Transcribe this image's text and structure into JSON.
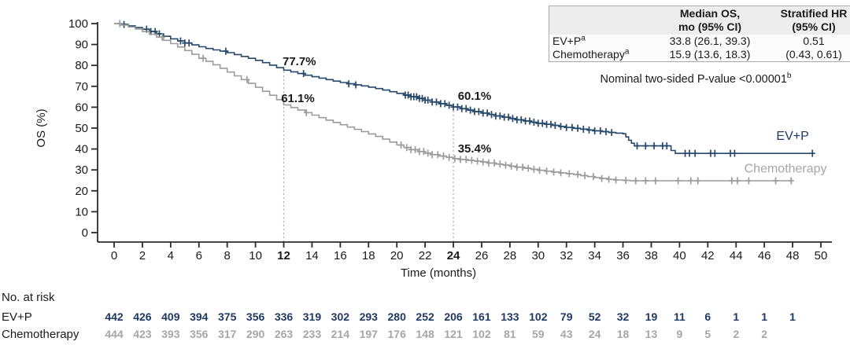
{
  "colors": {
    "evp": "#1F3864",
    "evp_curve": "#26486B",
    "chemo": "#A6A6A6",
    "chemo_curve": "#9C9C9C",
    "axis": "#2b2b2b",
    "refline": "#aaaaaa",
    "table_header_bg": "#ededed",
    "table_border": "#ababab"
  },
  "stats_table": {
    "col_median_line1": "Median OS,",
    "col_median_line2": "mo (95% CI)",
    "col_hr_line1": "Stratified HR",
    "col_hr_line2": "(95% CI)",
    "rows": [
      {
        "label": "EV+P",
        "sup": "a",
        "median": "33.8 (26.1, 39.3)",
        "hr": "0.51"
      },
      {
        "label": "Chemotherapy",
        "sup": "a",
        "median": "15.9 (13.6, 18.3)",
        "hr": "(0.43, 0.61)"
      }
    ]
  },
  "pvalue": {
    "text": "Nominal two-sided P-value <0.00001",
    "sup": "b"
  },
  "chart_data": {
    "type": "line",
    "subtype": "kaplan-meier-step",
    "title": "",
    "xlabel": "Time (months)",
    "ylabel": "OS (%)",
    "xlim": [
      0,
      50
    ],
    "ylim": [
      0,
      100
    ],
    "xtick_step": 2,
    "ytick_step": 10,
    "emphasized_xticks": [
      12,
      24
    ],
    "grid": false,
    "reference_lines": [
      {
        "x": 12,
        "top_pct": 77.7
      },
      {
        "x": 24,
        "top_pct": 60.1
      }
    ],
    "annotations": [
      {
        "text": "77.7%",
        "month": 13.1,
        "pct": 82.0
      },
      {
        "text": "61.1%",
        "month": 13.0,
        "pct": 64.2
      },
      {
        "text": "60.1%",
        "month": 25.5,
        "pct": 65.5
      },
      {
        "text": "35.4%",
        "month": 25.5,
        "pct": 40.2
      }
    ],
    "end_labels": [
      {
        "text": "EV+P",
        "month": 48.0,
        "pct": 46.2,
        "color_key": "evp"
      },
      {
        "text": "Chemotherapy",
        "month": 47.5,
        "pct": 30.6,
        "color_key": "chemo"
      }
    ],
    "series": [
      {
        "name": "EV+P",
        "color_key": "evp_curve",
        "steps": [
          [
            0,
            100
          ],
          [
            0.5,
            99.6
          ],
          [
            1,
            98.9
          ],
          [
            1.5,
            98.1
          ],
          [
            2,
            97.3
          ],
          [
            2.5,
            96.2
          ],
          [
            3,
            95.1
          ],
          [
            3.5,
            93.9
          ],
          [
            4,
            92.7
          ],
          [
            4.5,
            91.7
          ],
          [
            5,
            90.7
          ],
          [
            5.5,
            89.8
          ],
          [
            6,
            88.9
          ],
          [
            6.5,
            88.1
          ],
          [
            7,
            87.4
          ],
          [
            7.5,
            86.8
          ],
          [
            8,
            86.1
          ],
          [
            8.5,
            85.2
          ],
          [
            9,
            84.3
          ],
          [
            9.5,
            83.4
          ],
          [
            10,
            82.4
          ],
          [
            10.5,
            81.3
          ],
          [
            11,
            80.1
          ],
          [
            11.5,
            78.9
          ],
          [
            12,
            77.7
          ],
          [
            12.5,
            76.9
          ],
          [
            13,
            76.1
          ],
          [
            13.5,
            75.3
          ],
          [
            14,
            74.6
          ],
          [
            14.5,
            73.9
          ],
          [
            15,
            73.2
          ],
          [
            15.5,
            72.5
          ],
          [
            16,
            71.8
          ],
          [
            16.5,
            71.2
          ],
          [
            17,
            70.7
          ],
          [
            17.5,
            70.2
          ],
          [
            18,
            69.6
          ],
          [
            18.5,
            68.9
          ],
          [
            19,
            68.2
          ],
          [
            19.5,
            67.4
          ],
          [
            20,
            66.6
          ],
          [
            20.5,
            65.8
          ],
          [
            21,
            65.0
          ],
          [
            21.5,
            64.2
          ],
          [
            22,
            63.4
          ],
          [
            22.5,
            62.5
          ],
          [
            23,
            61.7
          ],
          [
            23.5,
            60.9
          ],
          [
            24,
            60.1
          ],
          [
            24.5,
            59.3
          ],
          [
            25,
            58.6
          ],
          [
            25.5,
            57.9
          ],
          [
            26,
            57.2
          ],
          [
            26.5,
            56.5
          ],
          [
            27,
            55.8
          ],
          [
            27.5,
            55.2
          ],
          [
            28,
            54.6
          ],
          [
            28.5,
            54.0
          ],
          [
            29,
            53.4
          ],
          [
            29.5,
            52.8
          ],
          [
            30,
            52.3
          ],
          [
            30.5,
            51.8
          ],
          [
            31,
            51.3
          ],
          [
            31.5,
            50.8
          ],
          [
            32,
            50.3
          ],
          [
            32.5,
            49.9
          ],
          [
            33,
            49.5
          ],
          [
            33.5,
            49.1
          ],
          [
            34,
            48.7
          ],
          [
            34.5,
            48.3
          ],
          [
            35,
            47.9
          ],
          [
            35.5,
            47.6
          ],
          [
            36,
            47.3
          ],
          [
            36.2,
            45.8
          ],
          [
            36.4,
            44.2
          ],
          [
            36.6,
            42.8
          ],
          [
            36.8,
            41.5
          ],
          [
            39.4,
            39.3
          ],
          [
            39.7,
            37.9
          ],
          [
            49.5,
            37.9
          ]
        ],
        "censor_months": [
          0.7,
          2.3,
          2.6,
          2.9,
          3.2,
          4.7,
          5.0,
          5.3,
          7.9,
          13.4,
          16.6,
          17.1,
          20.6,
          20.8,
          21.0,
          21.2,
          21.4,
          21.6,
          21.8,
          22.0,
          22.2,
          22.5,
          22.8,
          23.1,
          23.4,
          23.7,
          24.0,
          24.3,
          24.6,
          24.9,
          25.2,
          25.5,
          25.8,
          26.1,
          26.4,
          26.7,
          27.0,
          27.3,
          27.6,
          27.9,
          28.2,
          28.5,
          28.8,
          29.1,
          29.4,
          29.7,
          30.0,
          30.3,
          30.6,
          30.9,
          31.2,
          31.6,
          32.0,
          32.4,
          32.8,
          33.2,
          33.6,
          34.0,
          34.4,
          34.8,
          35.2,
          37.0,
          37.6,
          38.2,
          38.8,
          39.1,
          40.4,
          40.7,
          41.1,
          42.2,
          42.5,
          43.6,
          43.9,
          49.4
        ]
      },
      {
        "name": "Chemotherapy",
        "color_key": "chemo_curve",
        "steps": [
          [
            0,
            100
          ],
          [
            0.5,
            99.3
          ],
          [
            1,
            98.4
          ],
          [
            1.5,
            97.4
          ],
          [
            2,
            96.2
          ],
          [
            2.5,
            94.9
          ],
          [
            3,
            93.5
          ],
          [
            3.5,
            92.0
          ],
          [
            4,
            90.4
          ],
          [
            4.5,
            88.8
          ],
          [
            5,
            87.1
          ],
          [
            5.5,
            85.3
          ],
          [
            6,
            83.4
          ],
          [
            6.5,
            81.9
          ],
          [
            7,
            80.3
          ],
          [
            7.5,
            78.6
          ],
          [
            8,
            76.8
          ],
          [
            8.5,
            75.0
          ],
          [
            9,
            73.2
          ],
          [
            9.5,
            71.4
          ],
          [
            10,
            69.5
          ],
          [
            10.5,
            67.6
          ],
          [
            11,
            65.7
          ],
          [
            11.5,
            63.6
          ],
          [
            12,
            61.1
          ],
          [
            12.5,
            59.8
          ],
          [
            13,
            58.6
          ],
          [
            13.5,
            57.4
          ],
          [
            14,
            56.2
          ],
          [
            14.5,
            55.0
          ],
          [
            15,
            53.8
          ],
          [
            15.5,
            52.7
          ],
          [
            16,
            51.6
          ],
          [
            16.5,
            50.5
          ],
          [
            17,
            49.4
          ],
          [
            17.5,
            48.3
          ],
          [
            18,
            47.2
          ],
          [
            18.5,
            46.0
          ],
          [
            19,
            44.7
          ],
          [
            19.5,
            43.3
          ],
          [
            20,
            41.9
          ],
          [
            20.5,
            40.7
          ],
          [
            21,
            39.7
          ],
          [
            21.5,
            38.8
          ],
          [
            22,
            38.0
          ],
          [
            22.5,
            37.3
          ],
          [
            23,
            36.6
          ],
          [
            23.5,
            36.0
          ],
          [
            24,
            35.4
          ],
          [
            24.5,
            35.0
          ],
          [
            25,
            34.6
          ],
          [
            25.5,
            34.2
          ],
          [
            26,
            33.8
          ],
          [
            26.5,
            33.3
          ],
          [
            27,
            32.8
          ],
          [
            27.5,
            32.3
          ],
          [
            28,
            31.8
          ],
          [
            28.5,
            31.3
          ],
          [
            29,
            30.8
          ],
          [
            29.5,
            30.3
          ],
          [
            30,
            29.8
          ],
          [
            30.5,
            29.4
          ],
          [
            31,
            29.0
          ],
          [
            31.5,
            28.6
          ],
          [
            32,
            28.2
          ],
          [
            32.5,
            27.8
          ],
          [
            33,
            27.3
          ],
          [
            33.5,
            26.8
          ],
          [
            34,
            26.3
          ],
          [
            34.5,
            25.9
          ],
          [
            35,
            25.5
          ],
          [
            35.5,
            25.2
          ],
          [
            36,
            25.0
          ],
          [
            36.5,
            24.8
          ],
          [
            48,
            24.8
          ]
        ],
        "censor_months": [
          0.4,
          3.4,
          6.3,
          9.4,
          13.6,
          20.3,
          20.7,
          21.0,
          21.3,
          21.6,
          21.9,
          22.2,
          22.5,
          22.9,
          23.3,
          23.7,
          24.1,
          24.5,
          24.9,
          25.3,
          25.7,
          26.1,
          26.5,
          26.9,
          27.3,
          27.7,
          28.1,
          28.5,
          28.9,
          29.3,
          29.7,
          30.1,
          30.6,
          31.1,
          31.6,
          32.2,
          32.8,
          33.3,
          33.9,
          34.5,
          35.0,
          35.5,
          36.2,
          36.9,
          37.6,
          38.3,
          39.9,
          40.8,
          41.3,
          43.7,
          44.1,
          44.9,
          46.8,
          47.9
        ]
      }
    ]
  },
  "risk_table": {
    "title": "No. at risk",
    "start_month": 0,
    "month_step": 2,
    "rows": [
      {
        "label": "EV+P",
        "color_key": "evp",
        "values": [
          442,
          426,
          409,
          394,
          375,
          356,
          336,
          319,
          302,
          293,
          280,
          252,
          206,
          161,
          133,
          102,
          79,
          52,
          32,
          19,
          11,
          6,
          1,
          1,
          1
        ]
      },
      {
        "label": "Chemotherapy",
        "color_key": "chemo",
        "values": [
          444,
          423,
          393,
          356,
          317,
          290,
          263,
          233,
          214,
          197,
          176,
          148,
          121,
          102,
          81,
          59,
          43,
          24,
          18,
          13,
          9,
          5,
          2,
          2
        ]
      }
    ]
  }
}
